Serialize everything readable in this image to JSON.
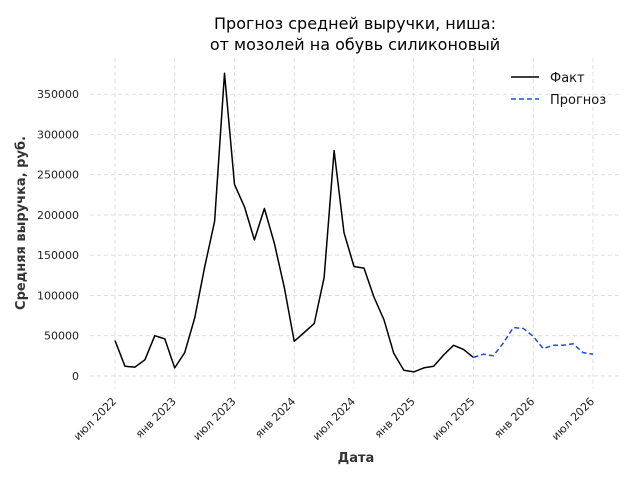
{
  "chart_data": {
    "type": "line",
    "title_line1": "Прогноз средней выручки, ниша:",
    "title_line2": "от мозолей на обувь силиконовый",
    "xlabel": "Дата",
    "ylabel": "Средняя выручка, руб.",
    "ylim": [
      -15000,
      395000
    ],
    "y_ticks": [
      0,
      50000,
      100000,
      150000,
      200000,
      250000,
      300000,
      350000
    ],
    "x_ticks": [
      {
        "date": "2022-07",
        "label": "июл 2022"
      },
      {
        "date": "2023-01",
        "label": "янв 2023"
      },
      {
        "date": "2023-07",
        "label": "июл 2023"
      },
      {
        "date": "2024-01",
        "label": "янв 2024"
      },
      {
        "date": "2024-07",
        "label": "июл 2024"
      },
      {
        "date": "2025-01",
        "label": "янв 2025"
      },
      {
        "date": "2025-07",
        "label": "июл 2025"
      },
      {
        "date": "2026-01",
        "label": "янв 2026"
      },
      {
        "date": "2026-07",
        "label": "июл 2026"
      }
    ],
    "grid": true,
    "legend_position": "top-right",
    "series": [
      {
        "name": "Факт",
        "color": "#000000",
        "style": "solid",
        "points": [
          {
            "x": "2022-07",
            "y": 44000
          },
          {
            "x": "2022-08",
            "y": 12000
          },
          {
            "x": "2022-09",
            "y": 11000
          },
          {
            "x": "2022-10",
            "y": 20000
          },
          {
            "x": "2022-11",
            "y": 50000
          },
          {
            "x": "2022-12",
            "y": 46000
          },
          {
            "x": "2023-01",
            "y": 10000
          },
          {
            "x": "2023-02",
            "y": 29000
          },
          {
            "x": "2023-03",
            "y": 72000
          },
          {
            "x": "2023-04",
            "y": 135000
          },
          {
            "x": "2023-05",
            "y": 192000
          },
          {
            "x": "2023-06",
            "y": 376000
          },
          {
            "x": "2023-07",
            "y": 238000
          },
          {
            "x": "2023-08",
            "y": 210000
          },
          {
            "x": "2023-09",
            "y": 169000
          },
          {
            "x": "2023-10",
            "y": 208000
          },
          {
            "x": "2023-11",
            "y": 165000
          },
          {
            "x": "2023-12",
            "y": 110000
          },
          {
            "x": "2024-01",
            "y": 43000
          },
          {
            "x": "2024-02",
            "y": 54000
          },
          {
            "x": "2024-03",
            "y": 65000
          },
          {
            "x": "2024-04",
            "y": 122000
          },
          {
            "x": "2024-05",
            "y": 280000
          },
          {
            "x": "2024-06",
            "y": 178000
          },
          {
            "x": "2024-07",
            "y": 136000
          },
          {
            "x": "2024-08",
            "y": 134000
          },
          {
            "x": "2024-09",
            "y": 98000
          },
          {
            "x": "2024-10",
            "y": 70000
          },
          {
            "x": "2024-11",
            "y": 28000
          },
          {
            "x": "2024-12",
            "y": 7000
          },
          {
            "x": "2025-01",
            "y": 5000
          },
          {
            "x": "2025-02",
            "y": 10000
          },
          {
            "x": "2025-03",
            "y": 12000
          },
          {
            "x": "2025-04",
            "y": 26000
          },
          {
            "x": "2025-05",
            "y": 38000
          },
          {
            "x": "2025-06",
            "y": 33000
          },
          {
            "x": "2025-07",
            "y": 23000
          }
        ]
      },
      {
        "name": "Прогноз",
        "color": "#1f4fd8",
        "style": "dashed",
        "points": [
          {
            "x": "2025-07",
            "y": 23000
          },
          {
            "x": "2025-08",
            "y": 27000
          },
          {
            "x": "2025-09",
            "y": 25000
          },
          {
            "x": "2025-10",
            "y": 41000
          },
          {
            "x": "2025-11",
            "y": 60000
          },
          {
            "x": "2025-12",
            "y": 59000
          },
          {
            "x": "2026-01",
            "y": 49000
          },
          {
            "x": "2026-02",
            "y": 34000
          },
          {
            "x": "2026-03",
            "y": 38000
          },
          {
            "x": "2026-04",
            "y": 38000
          },
          {
            "x": "2026-05",
            "y": 40000
          },
          {
            "x": "2026-06",
            "y": 29000
          },
          {
            "x": "2026-07",
            "y": 27000
          }
        ]
      }
    ]
  }
}
